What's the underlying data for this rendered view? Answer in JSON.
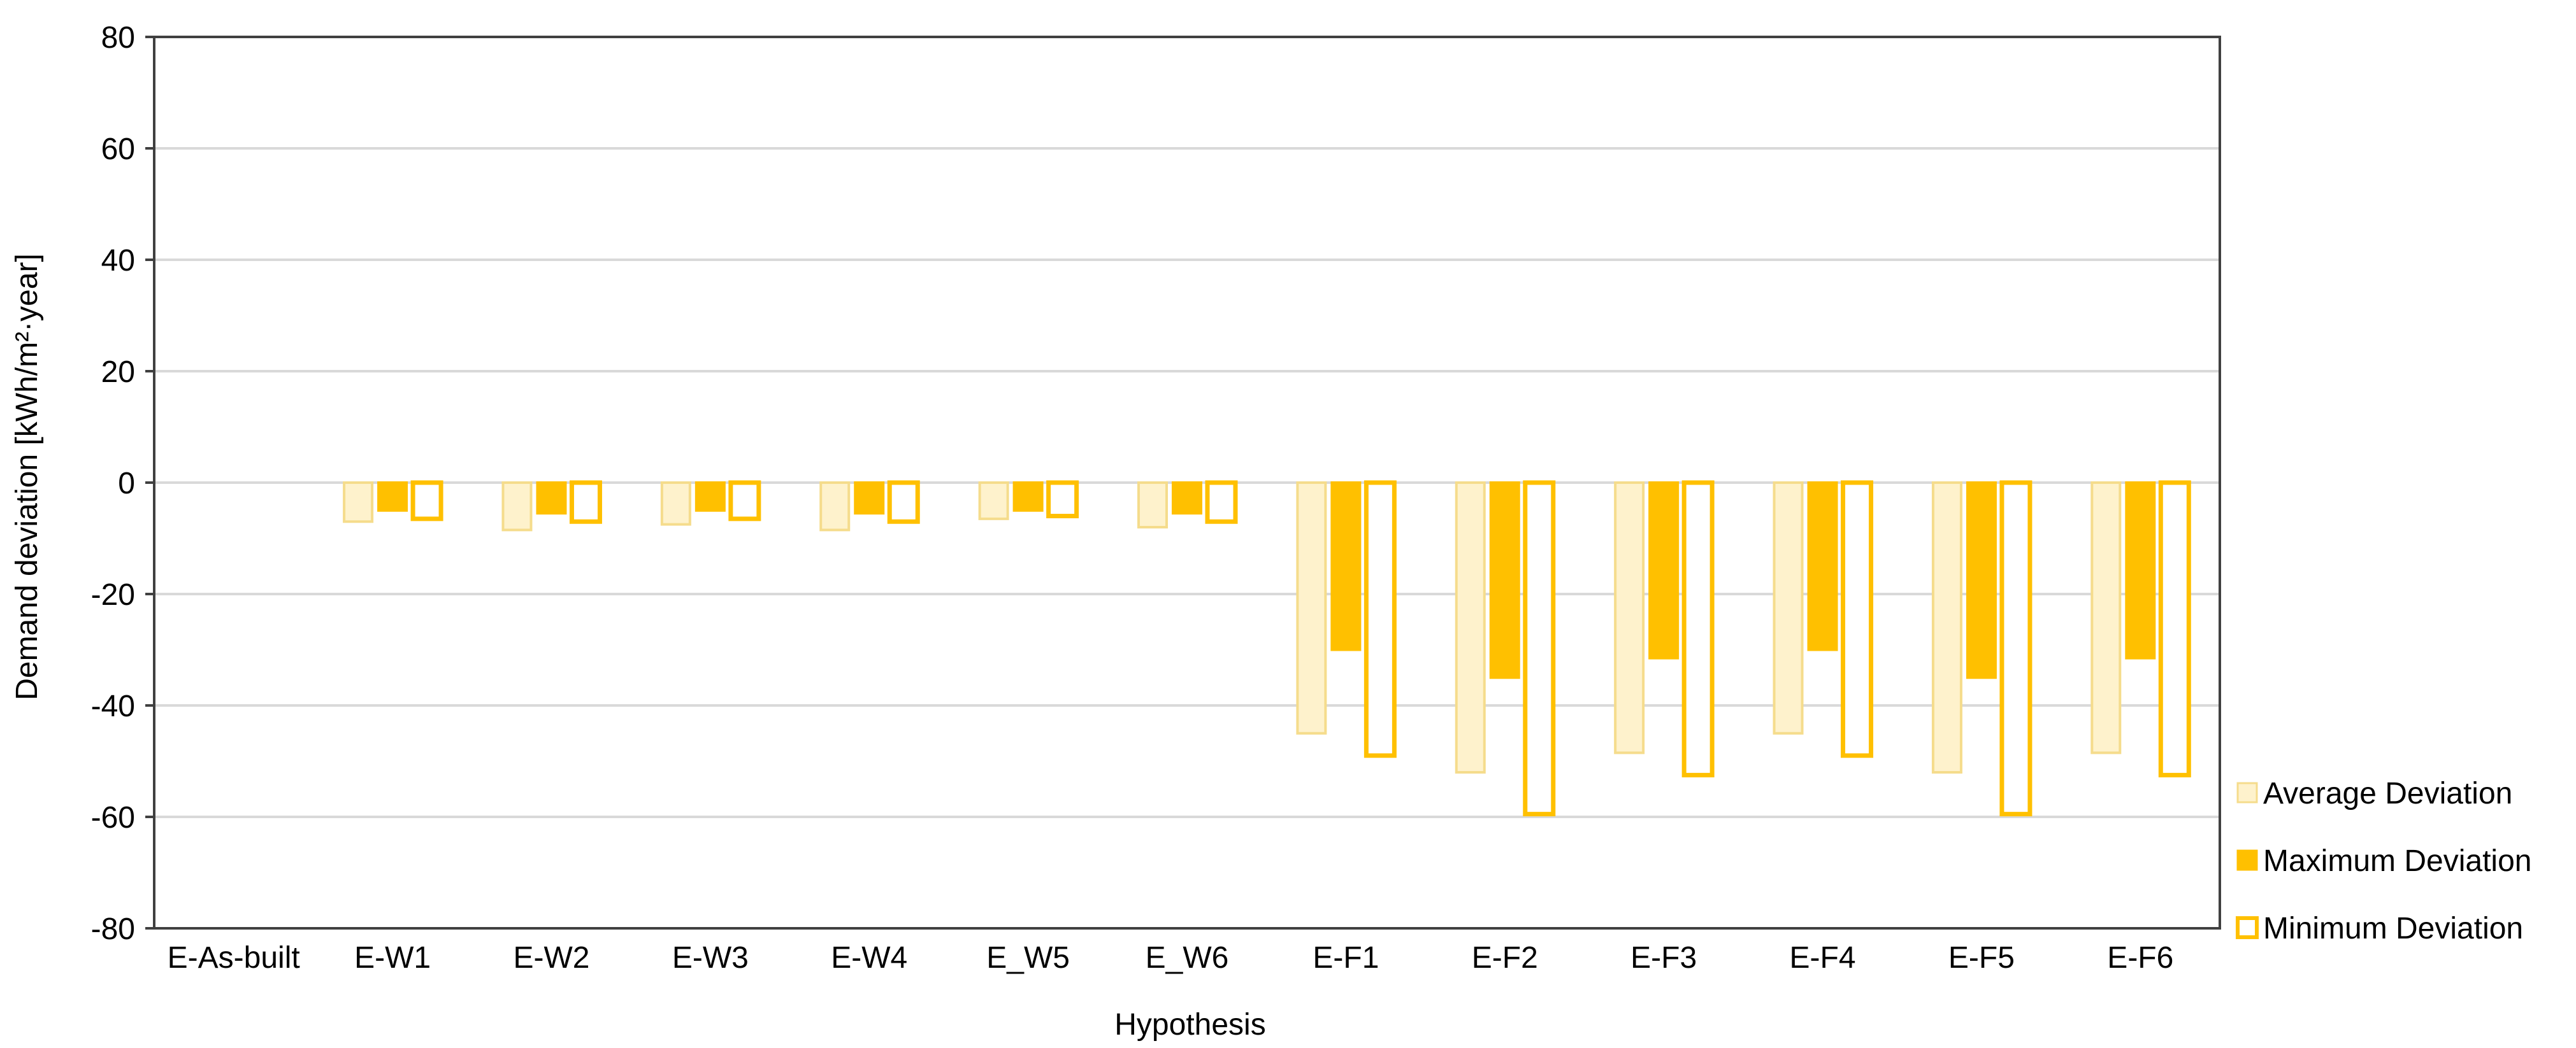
{
  "chart_data": {
    "type": "bar",
    "title": "",
    "xlabel": "Hypothesis",
    "ylabel": "Demand deviation  [kWh/m²·year]",
    "ylim": [
      -80,
      80
    ],
    "yticks": [
      80,
      60,
      40,
      20,
      0,
      -20,
      -40,
      -60,
      -80
    ],
    "ytick_labels": [
      "80",
      "60",
      "40",
      "20",
      "0",
      "-20",
      "-40",
      "-60",
      "-80"
    ],
    "grid": true,
    "legend_position": "right",
    "categories": [
      "E-As-built",
      "E-W1",
      "E-W2",
      "E-W3",
      "E-W4",
      "E_W5",
      "E_W6",
      "E-F1",
      "E-F2",
      "E-F3",
      "E-F4",
      "E-F5",
      "E-F6"
    ],
    "series": [
      {
        "name": "Average Deviation",
        "values": [
          0,
          -7,
          -8.5,
          -7.5,
          -8.5,
          -6.5,
          -8,
          -45,
          -52,
          -48.5,
          -45,
          -52,
          -48.5
        ]
      },
      {
        "name": "Maximum Deviation",
        "values": [
          0,
          -5,
          -5.5,
          -5,
          -5.5,
          -5,
          -5.5,
          -30,
          -35,
          -31.5,
          -30,
          -35,
          -31.5
        ]
      },
      {
        "name": "Minimum Deviation",
        "values": [
          0,
          -6.5,
          -7,
          -6.5,
          -7,
          -6,
          -7,
          -49,
          -59.5,
          -52.5,
          -49,
          -59.5,
          -52.5
        ]
      }
    ]
  },
  "colors": {
    "average_fill": "#FEF2CC",
    "average_stroke": "#F5DC8C",
    "maximum_fill": "#FFC000",
    "maximum_stroke": "#FFC000",
    "minimum_fill": "#FFFFFF",
    "minimum_stroke": "#FFC000",
    "grid": "#D9D9D9",
    "axis": "#404040"
  }
}
